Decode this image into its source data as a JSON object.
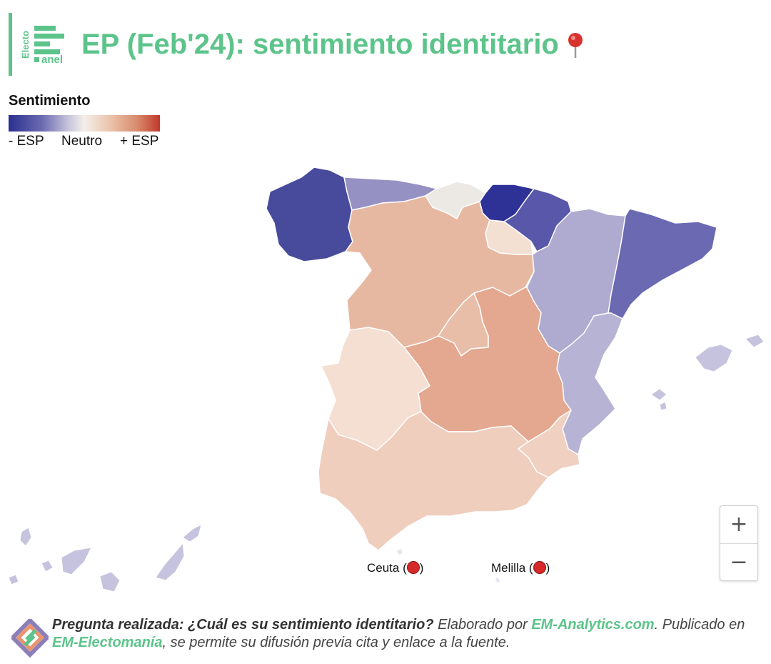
{
  "header": {
    "logo_text_top": "Electo",
    "logo_text_bottom": "anel",
    "title": "EP (Feb'24): sentimiento identitario",
    "pin_icon": "pushpin-icon"
  },
  "legend": {
    "title": "Sentimiento",
    "low_label": "- ESP",
    "mid_label": "Neutro",
    "high_label": "+ ESP",
    "low_color": "#2a2f8f",
    "high_color": "#c0392b"
  },
  "regions": [
    {
      "name": "Galicia",
      "sentiment": "-ESP strong",
      "color": "#484a9c"
    },
    {
      "name": "Asturias",
      "sentiment": "-ESP moderate",
      "color": "#9691c3"
    },
    {
      "name": "Cantabria",
      "sentiment": "neutral",
      "color": "#ece8e4"
    },
    {
      "name": "País Vasco",
      "sentiment": "-ESP very strong",
      "color": "#2e3196"
    },
    {
      "name": "Navarra",
      "sentiment": "-ESP strong",
      "color": "#5857a9"
    },
    {
      "name": "La Rioja",
      "sentiment": "slightly +ESP",
      "color": "#f3e0d2"
    },
    {
      "name": "Aragón",
      "sentiment": "-ESP mild",
      "color": "#aeaad0"
    },
    {
      "name": "Cataluña",
      "sentiment": "-ESP strong",
      "color": "#6a69b2"
    },
    {
      "name": "Castilla y León",
      "sentiment": "+ESP",
      "color": "#e7b8a1"
    },
    {
      "name": "Madrid",
      "sentiment": "+ESP",
      "color": "#e9bea8"
    },
    {
      "name": "Castilla-La Mancha",
      "sentiment": "+ESP",
      "color": "#e4a78f"
    },
    {
      "name": "Extremadura",
      "sentiment": "slightly +ESP",
      "color": "#f4dfd2"
    },
    {
      "name": "Comunidad Valenciana",
      "sentiment": "-ESP mild",
      "color": "#b6b3d4"
    },
    {
      "name": "Murcia",
      "sentiment": "slightly +ESP",
      "color": "#f0d0c1"
    },
    {
      "name": "Andalucía",
      "sentiment": "slightly +ESP",
      "color": "#efcebd"
    },
    {
      "name": "Islas Baleares",
      "sentiment": "-ESP mild",
      "color": "#c6c3de"
    },
    {
      "name": "Canarias",
      "sentiment": "-ESP mild",
      "color": "#c6c3de"
    }
  ],
  "cities": {
    "ceuta": {
      "label": "Ceuta (",
      "close": ")",
      "icon": "red-circle-icon"
    },
    "melilla": {
      "label": "Melilla (",
      "close": ")",
      "icon": "red-circle-icon"
    }
  },
  "zoom": {
    "in_label": "+",
    "out_label": "−"
  },
  "footer": {
    "question_label": "Pregunta realizada: ¿Cuál es su sentimiento identitario?",
    "made_by": " Elaborado por ",
    "analytics_link": "EM-Analytics.com",
    "published_in": ". Publicado en ",
    "electomania_link": "EM-Electomanía",
    "rest": ", se permite su difusión previa cita y enlace a la fuente."
  }
}
